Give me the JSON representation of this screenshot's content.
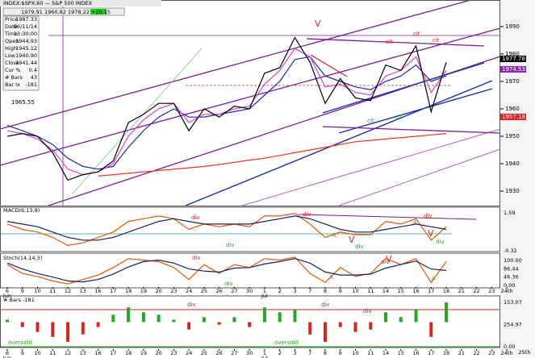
{
  "header": {
    "title": "INDEX:$SPX,60 — S&P 500 INDEX",
    "quotes": [
      "1979.91",
      "1960.82",
      "1978.22",
      "+20.15"
    ]
  },
  "info_box": {
    "rows": [
      [
        "Price",
        "1987.33"
      ],
      [
        "Date",
        "06/11/14"
      ],
      [
        "Time",
        "13:30:00"
      ],
      [
        "Open",
        "1944.93"
      ],
      [
        "High",
        "1945.12"
      ],
      [
        "Low",
        "1940.90"
      ],
      [
        "Close",
        "1941.44"
      ],
      [
        "Cur %",
        "0.4"
      ],
      [
        "# Bars",
        "43"
      ],
      [
        "Bar Ix",
        "-181"
      ]
    ]
  },
  "chart_data": [
    {
      "type": "line",
      "panel": "price",
      "categories": [
        "6",
        "9",
        "10",
        "11",
        "12",
        "13",
        "16",
        "17",
        "18",
        "19",
        "20",
        "23",
        "24",
        "25",
        "26",
        "27",
        "30",
        "1",
        "2",
        "3",
        "7",
        "8",
        "9",
        "10",
        "11",
        "14",
        "15",
        "16",
        "17",
        "18",
        "21",
        "22",
        "23",
        "24th"
      ],
      "months": [
        "Jun",
        "Jul"
      ],
      "ylim": [
        1924.7,
        1999.7
      ],
      "yticks": [
        1930,
        1940,
        1950,
        1960,
        1970,
        1980,
        1990
      ],
      "series": [
        {
          "color": "#ee3322",
          "values": [
            null,
            null,
            null,
            null,
            null,
            null,
            1935.5,
            1936,
            1936.5,
            1937,
            1937.5,
            1938,
            1938.5,
            1939,
            1939.7,
            1940.5,
            1941.3,
            1942,
            1943,
            1944,
            1945,
            1946,
            1947,
            1948,
            1948.5,
            1949,
            1949.5,
            1950,
            1950.5,
            1951,
            null,
            null,
            null,
            null
          ]
        },
        {
          "color": "#1a2bb0",
          "values": [
            1954,
            1952,
            1950,
            1947,
            1942,
            1939,
            1938,
            1939,
            1946,
            1952,
            1957,
            1960,
            1957,
            1957,
            1958,
            1959,
            1960,
            1965,
            1970,
            1978,
            1979,
            1972,
            1970,
            1968,
            1967,
            1970,
            1972,
            1976,
            1970,
            1972,
            null,
            null,
            null,
            null
          ]
        },
        {
          "color": "#e040c8",
          "values": [
            1952,
            1951,
            1949,
            1945,
            1938,
            1936,
            1937,
            1940,
            1950,
            1956,
            1960,
            1962,
            1955,
            1958,
            1958,
            1960,
            1961,
            1969,
            1974,
            1982,
            1979,
            1968,
            1969,
            1966,
            1965,
            1972,
            1974,
            1979,
            1966,
            1974,
            null,
            null,
            null,
            null
          ]
        },
        {
          "color": "#000000",
          "values": [
            1950,
            1951,
            1950,
            1944,
            1934,
            1936,
            1937,
            1941,
            1955,
            1958,
            1962,
            1962,
            1952,
            1960,
            1957,
            1961,
            1960,
            1973,
            1975,
            1986,
            1977,
            1962,
            1971,
            1964,
            1963,
            1976,
            1974,
            1983,
            1959,
            1977,
            null,
            null,
            null,
            null
          ]
        }
      ],
      "price_flags": [
        {
          "label": "1977.78",
          "color": "#000000"
        },
        {
          "label": "1974.53",
          "color": "#8a2ab0"
        },
        {
          "label": "1957.18",
          "color": "#dd2222"
        }
      ],
      "annotations": [
        "1965.55",
        "V",
        "cit",
        "cit",
        "cit",
        "cit",
        "cit"
      ]
    },
    {
      "type": "line",
      "panel": "macd",
      "title": "MACD(6,13,9)",
      "ylim": [
        -8,
        8
      ],
      "series": [
        {
          "color": "#ee5500",
          "values": [
            2,
            0,
            -1,
            -3,
            -6,
            -5,
            -3,
            -1,
            3,
            4,
            5,
            4,
            0,
            2,
            1,
            2,
            1,
            5,
            5,
            6,
            2,
            -3,
            -1,
            -2,
            -2,
            3,
            2,
            4,
            -4,
            1,
            null,
            null,
            null,
            null
          ]
        },
        {
          "color": "#14206e",
          "values": [
            3,
            2,
            1,
            -1,
            -3,
            -4,
            -4,
            -3,
            -1,
            1,
            3,
            4,
            3,
            2,
            2,
            2,
            2,
            3,
            4,
            5,
            4,
            2,
            0,
            -1,
            -1,
            0,
            1,
            2,
            1,
            0,
            null,
            null,
            null,
            null
          ]
        }
      ],
      "right_labels": [
        "1.59",
        "-0.32"
      ],
      "annotations": [
        "div",
        "div",
        "div",
        "div",
        "div",
        "div",
        "A",
        "A",
        "V",
        "V"
      ]
    },
    {
      "type": "line",
      "panel": "stoch",
      "title": "Stoch(14,14,3)",
      "ylim": [
        0,
        100
      ],
      "series": [
        {
          "color": "#ee5500",
          "values": [
            70,
            40,
            30,
            15,
            5,
            20,
            35,
            60,
            90,
            85,
            80,
            60,
            20,
            70,
            40,
            70,
            60,
            90,
            85,
            95,
            40,
            10,
            60,
            30,
            40,
            90,
            70,
            90,
            10,
            80,
            null,
            null,
            null,
            null
          ]
        },
        {
          "color": "#14206e",
          "values": [
            75,
            55,
            40,
            28,
            15,
            12,
            20,
            38,
            62,
            80,
            85,
            75,
            55,
            48,
            45,
            58,
            60,
            72,
            80,
            90,
            75,
            45,
            35,
            35,
            38,
            58,
            70,
            82,
            55,
            50,
            null,
            null,
            null,
            null
          ]
        }
      ],
      "right_labels": [
        "100.00",
        "86.44",
        "46.36",
        "0.00"
      ],
      "annotations": [
        "div",
        "div",
        "div",
        "A",
        "A",
        "V"
      ]
    },
    {
      "type": "bar",
      "panel": "hist",
      "title": "# Bars -181",
      "ylim": [
        -100,
        100
      ],
      "up_color": "#22aa22",
      "down_color": "#dd2222",
      "values": [
        10,
        -20,
        -40,
        -60,
        -80,
        -50,
        -20,
        30,
        60,
        40,
        30,
        10,
        -30,
        20,
        -10,
        20,
        -20,
        60,
        40,
        50,
        -50,
        -80,
        -20,
        -40,
        -30,
        40,
        20,
        50,
        -60,
        80,
        null,
        null,
        null,
        null
      ],
      "right_labels": [
        "153.07",
        "254.97",
        "0.00"
      ],
      "annotations": [
        "oversold",
        "oversold",
        "div",
        "div",
        "div"
      ],
      "bottom_extra": "25th"
    }
  ]
}
